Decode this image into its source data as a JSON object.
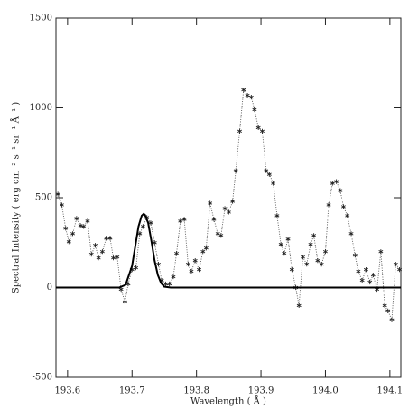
{
  "chart_data": {
    "type": "line",
    "xlabel": "Wavelength ( Å )",
    "ylabel": "Spectral Intensity ( erg cm⁻² s⁻¹ sr⁻¹ Å⁻¹ )",
    "xlim": [
      193.582,
      194.117
    ],
    "ylim": [
      -500,
      1500
    ],
    "xticks": [
      193.6,
      193.7,
      193.8,
      193.9,
      {
        "value": 194,
        "label": "194.0"
      },
      194.1
    ],
    "yticks": [
      -500,
      0,
      500,
      1000,
      1500
    ],
    "series": [
      {
        "color": "#555555",
        "style": "dotted",
        "marker": "star",
        "x": [
          193.585,
          193.591,
          193.597,
          193.602,
          193.608,
          193.614,
          193.62,
          193.625,
          193.631,
          193.637,
          193.643,
          193.648,
          193.654,
          193.66,
          193.666,
          193.671,
          193.677,
          193.683,
          193.689,
          193.694,
          193.7,
          193.706,
          193.712,
          193.717,
          193.723,
          193.729,
          193.735,
          193.741,
          193.746,
          193.752,
          193.758,
          193.764,
          193.769,
          193.775,
          193.781,
          193.787,
          193.792,
          193.798,
          193.804,
          193.81,
          193.815,
          193.821,
          193.827,
          193.833,
          193.838,
          193.844,
          193.85,
          193.856,
          193.861,
          193.867,
          193.873,
          193.879,
          193.885,
          193.89,
          193.896,
          193.902,
          193.908,
          193.913,
          193.919,
          193.925,
          193.931,
          193.936,
          193.942,
          193.948,
          193.954,
          193.959,
          193.965,
          193.971,
          193.977,
          193.982,
          193.988,
          193.994,
          194.0,
          194.005,
          194.011,
          194.017,
          194.023,
          194.028,
          194.034,
          194.04,
          194.046,
          194.051,
          194.057,
          194.063,
          194.069,
          194.074,
          194.08,
          194.086,
          194.092,
          194.097,
          194.103,
          194.109,
          194.115
        ],
        "values": [
          520,
          460,
          330,
          255,
          300,
          385,
          345,
          340,
          370,
          185,
          235,
          165,
          200,
          275,
          275,
          165,
          170,
          -10,
          -80,
          20,
          100,
          110,
          300,
          340,
          390,
          360,
          250,
          130,
          40,
          20,
          20,
          60,
          190,
          370,
          380,
          130,
          90,
          150,
          100,
          200,
          220,
          470,
          380,
          300,
          290,
          440,
          420,
          480,
          650,
          870,
          1100,
          1070,
          1060,
          990,
          890,
          870,
          650,
          630,
          580,
          400,
          240,
          190,
          270,
          100,
          0,
          -100,
          170,
          130,
          240,
          290,
          150,
          130,
          200,
          460,
          580,
          590,
          540,
          450,
          400,
          300,
          180,
          90,
          40,
          100,
          30,
          70,
          -10,
          200,
          -100,
          -130,
          -180,
          130,
          100
        ]
      },
      {
        "color": "#000000",
        "style": "solid",
        "marker": "none",
        "x": [
          193.582,
          193.68,
          193.69,
          193.7,
          193.705,
          193.71,
          193.715,
          193.718,
          193.72,
          193.725,
          193.73,
          193.735,
          193.74,
          193.745,
          193.75,
          193.76,
          194.117
        ],
        "values": [
          0,
          0,
          15,
          120,
          230,
          340,
          400,
          410,
          405,
          360,
          260,
          150,
          70,
          25,
          5,
          0,
          0
        ]
      }
    ]
  }
}
